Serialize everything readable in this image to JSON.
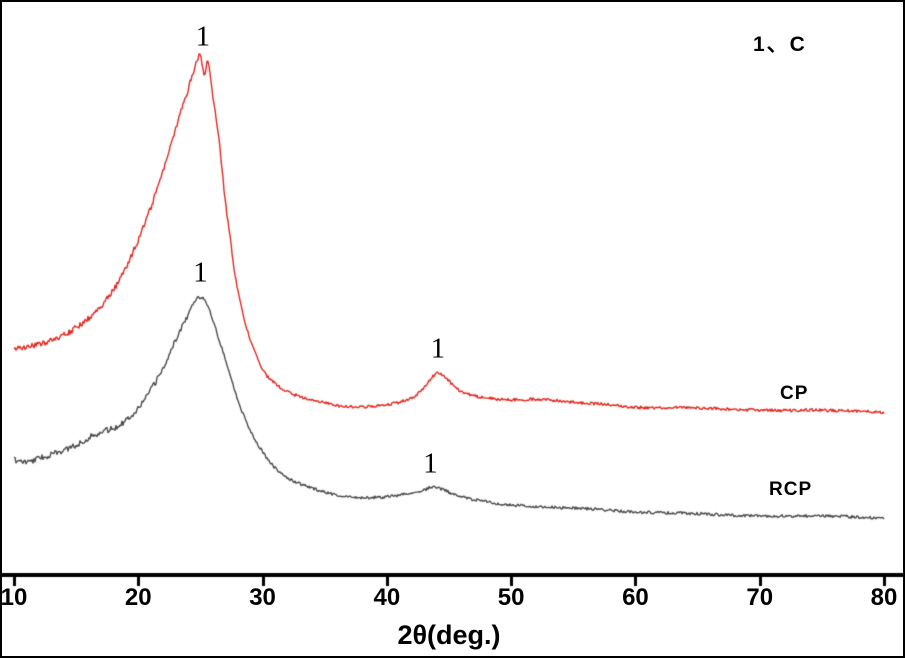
{
  "figure": {
    "background": "#ffffff",
    "border_color": "#000000",
    "axis_color": "#000000"
  },
  "chart_data": {
    "type": "line",
    "title": "",
    "xlabel": "2θ(deg.)",
    "ylabel": "",
    "xlim": [
      10,
      80
    ],
    "ylim": [
      0,
      100
    ],
    "grid": false,
    "x_ticks": [
      10,
      20,
      30,
      40,
      50,
      60,
      70,
      80
    ],
    "legend_note": "1、C",
    "legend_position": "top-right",
    "series": [
      {
        "name": "CP",
        "color": "#e2261f",
        "points": [
          [
            10,
            40.0
          ],
          [
            11,
            40.2
          ],
          [
            12,
            40.6
          ],
          [
            13,
            41.3
          ],
          [
            14,
            42.3
          ],
          [
            15,
            43.6
          ],
          [
            16,
            45.3
          ],
          [
            17,
            47.5
          ],
          [
            18,
            50.3
          ],
          [
            19,
            54.2
          ],
          [
            20,
            59.1
          ],
          [
            21,
            64.8
          ],
          [
            22,
            71.4
          ],
          [
            23,
            78.5
          ],
          [
            24,
            85.5
          ],
          [
            24.6,
            89.8
          ],
          [
            25,
            91.7
          ],
          [
            25.3,
            88.5
          ],
          [
            25.6,
            90.2
          ],
          [
            26,
            84.7
          ],
          [
            26.5,
            76.7
          ],
          [
            27,
            66.1
          ],
          [
            27.5,
            57.5
          ],
          [
            28,
            50.3
          ],
          [
            28.5,
            45.3
          ],
          [
            29,
            41.4
          ],
          [
            30,
            36.2
          ],
          [
            31,
            33.8
          ],
          [
            32,
            32.3
          ],
          [
            33,
            31.5
          ],
          [
            34,
            30.9
          ],
          [
            35,
            30.5
          ],
          [
            36,
            29.9
          ],
          [
            37,
            29.7
          ],
          [
            38,
            29.6
          ],
          [
            39,
            29.8
          ],
          [
            40,
            30.0
          ],
          [
            41,
            30.5
          ],
          [
            42,
            31.2
          ],
          [
            43,
            33.0
          ],
          [
            43.7,
            35.0
          ],
          [
            44.2,
            35.6
          ],
          [
            44.8,
            34.6
          ],
          [
            45.5,
            33.2
          ],
          [
            46,
            32.3
          ],
          [
            47,
            31.6
          ],
          [
            48,
            31.2
          ],
          [
            49,
            31.0
          ],
          [
            50,
            30.9
          ],
          [
            52,
            31.0
          ],
          [
            54,
            30.7
          ],
          [
            56,
            30.3
          ],
          [
            58,
            30.0
          ],
          [
            60,
            29.6
          ],
          [
            62,
            29.5
          ],
          [
            64,
            29.5
          ],
          [
            66,
            29.4
          ],
          [
            68,
            29.2
          ],
          [
            70,
            29.1
          ],
          [
            72,
            29.0
          ],
          [
            74,
            29.1
          ],
          [
            76,
            29.0
          ],
          [
            78,
            28.9
          ],
          [
            80,
            28.7
          ]
        ]
      },
      {
        "name": "RCP",
        "color": "#4b4b4b",
        "points": [
          [
            10,
            20.3
          ],
          [
            11,
            19.9
          ],
          [
            12,
            20.6
          ],
          [
            13,
            21.2
          ],
          [
            14,
            22.0
          ],
          [
            15,
            22.9
          ],
          [
            16,
            24.2
          ],
          [
            17,
            25.2
          ],
          [
            18,
            25.9
          ],
          [
            19,
            27.3
          ],
          [
            20,
            29.5
          ],
          [
            21,
            32.6
          ],
          [
            22,
            36.5
          ],
          [
            23,
            41.4
          ],
          [
            24,
            45.9
          ],
          [
            24.7,
            48.8
          ],
          [
            25,
            48.9
          ],
          [
            25.4,
            48.3
          ],
          [
            26,
            45.0
          ],
          [
            26.5,
            41.5
          ],
          [
            27,
            37.9
          ],
          [
            28,
            30.9
          ],
          [
            29,
            25.6
          ],
          [
            30,
            21.7
          ],
          [
            31,
            18.9
          ],
          [
            32,
            17.1
          ],
          [
            33,
            16.1
          ],
          [
            34,
            15.3
          ],
          [
            35,
            14.6
          ],
          [
            36,
            14.1
          ],
          [
            37,
            13.8
          ],
          [
            38,
            13.6
          ],
          [
            39,
            13.7
          ],
          [
            40,
            13.8
          ],
          [
            41,
            14.1
          ],
          [
            42,
            14.5
          ],
          [
            43,
            15.0
          ],
          [
            43.6,
            15.5
          ],
          [
            44.2,
            15.3
          ],
          [
            45,
            14.6
          ],
          [
            46,
            13.8
          ],
          [
            47,
            13.3
          ],
          [
            48,
            12.9
          ],
          [
            49,
            12.6
          ],
          [
            50,
            12.3
          ],
          [
            52,
            12.1
          ],
          [
            54,
            11.9
          ],
          [
            56,
            11.7
          ],
          [
            58,
            11.4
          ],
          [
            60,
            11.1
          ],
          [
            62,
            11.0
          ],
          [
            64,
            10.9
          ],
          [
            66,
            10.7
          ],
          [
            68,
            10.5
          ],
          [
            70,
            10.4
          ],
          [
            72,
            10.4
          ],
          [
            74,
            10.4
          ],
          [
            76,
            10.4
          ],
          [
            78,
            10.2
          ],
          [
            80,
            10.1
          ]
        ]
      }
    ],
    "peak_annotations": [
      {
        "text": "1",
        "series": "CP",
        "x": 25.2,
        "y": 94.8
      },
      {
        "text": "1",
        "series": "RCP",
        "x": 25.0,
        "y": 53.2
      },
      {
        "text": "1",
        "series": "CP",
        "x": 44.1,
        "y": 39.9
      },
      {
        "text": "1",
        "series": "RCP",
        "x": 43.5,
        "y": 19.6
      }
    ]
  }
}
